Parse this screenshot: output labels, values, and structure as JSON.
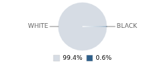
{
  "chart_data": {
    "type": "pie",
    "categories": [
      "WHITE",
      "BLACK"
    ],
    "values": [
      99.4,
      0.6
    ],
    "value_labels": [
      "99.4%",
      "0.6%"
    ],
    "colors": [
      "#d6dce4",
      "#2e5f8a"
    ],
    "legend": "bottom"
  }
}
